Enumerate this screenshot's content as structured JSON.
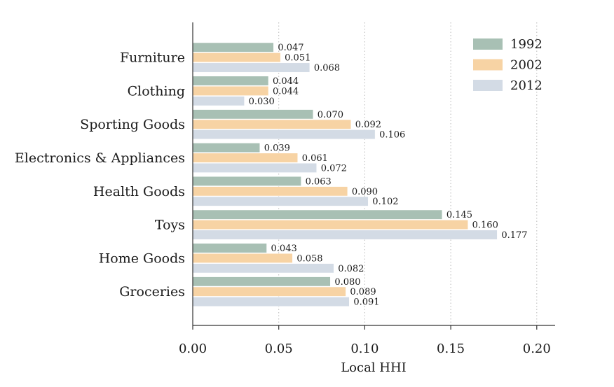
{
  "chart_data": {
    "type": "bar",
    "orientation": "horizontal",
    "title": "",
    "xlabel": "Local HHI",
    "ylabel": "",
    "xlim": [
      0,
      0.21
    ],
    "x_ticks": [
      "0.00",
      "0.05",
      "0.10",
      "0.15",
      "0.20"
    ],
    "x_tick_values": [
      0,
      0.05,
      0.1,
      0.15,
      0.2
    ],
    "grid": "vertical dotted",
    "legend_position": "top-right",
    "categories": [
      "Furniture",
      "Clothing",
      "Sporting Goods",
      "Electronics & Appliances",
      "Health Goods",
      "Toys",
      "Home Goods",
      "Groceries"
    ],
    "series": [
      {
        "name": "1992",
        "color": "#a8c0b4",
        "values": [
          0.047,
          0.044,
          0.07,
          0.039,
          0.063,
          0.145,
          0.043,
          0.08
        ],
        "labels": [
          "0.047",
          "0.044",
          "0.070",
          "0.039",
          "0.063",
          "0.145",
          "0.043",
          "0.080"
        ]
      },
      {
        "name": "2002",
        "color": "#f7d3a4",
        "values": [
          0.051,
          0.044,
          0.092,
          0.061,
          0.09,
          0.16,
          0.058,
          0.089
        ],
        "labels": [
          "0.051",
          "0.044",
          "0.092",
          "0.061",
          "0.090",
          "0.160",
          "0.058",
          "0.089"
        ]
      },
      {
        "name": "2012",
        "color": "#d3dbe5",
        "values": [
          0.068,
          0.03,
          0.106,
          0.072,
          0.102,
          0.177,
          0.082,
          0.091
        ],
        "labels": [
          "0.068",
          "0.030",
          "0.106",
          "0.072",
          "0.102",
          "0.177",
          "0.082",
          "0.091"
        ]
      }
    ]
  }
}
